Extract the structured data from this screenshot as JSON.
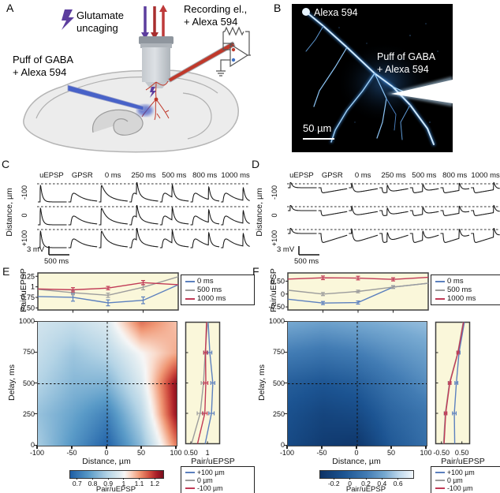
{
  "panel_labels": {
    "a": "A",
    "b": "B",
    "c": "C",
    "d": "D",
    "e": "E",
    "f": "F"
  },
  "colors": {
    "blue": "#5C80BE",
    "gray": "#9C9C9C",
    "red": "#C13A56",
    "plot_bg": "#FAF7DA",
    "trace": "#151515"
  },
  "panel_a": {
    "uncaging_line1": "Glutamate",
    "uncaging_line2": "uncaging",
    "recording_line1": "Recording el.,",
    "recording_line2": "+ Alexa 594",
    "puff_line1": "Puff of GABA",
    "puff_line2": "+ Alexa 594"
  },
  "panel_b": {
    "dye_label": "Alexa 594",
    "puff_line1": "Puff of GABA",
    "puff_line2": "+ Alexa 594",
    "scalebar": "50 µm"
  },
  "panel_c": {
    "columns": [
      "uEPSP",
      "GPSR",
      "0 ms",
      "250 ms",
      "500 ms",
      "800 ms",
      "1000 ms"
    ],
    "row_labels": [
      "-100",
      "0",
      "+100"
    ],
    "ylabel": "Distance, µm",
    "scale_v": "3 mV",
    "scale_h": "500 ms"
  },
  "panel_d": {
    "columns": [
      "uEPSP",
      "GPSR",
      "0 ms",
      "250 ms",
      "500 ms",
      "800 ms",
      "1000 ms"
    ],
    "row_labels": [
      "-100",
      "0",
      "+100"
    ],
    "ylabel": "Distance, µm",
    "scale_v": "3 mV",
    "scale_h": "500 ms"
  },
  "chart_data": {
    "e_top": {
      "type": "line",
      "ylabel": "Pair/uEPSP",
      "x": [
        -100,
        -50,
        0,
        50,
        100
      ],
      "xlim": [
        -100,
        100
      ],
      "ylim": [
        0.45,
        1.33
      ],
      "yticks": [
        {
          "v": 0.5,
          "label": "0.50"
        },
        {
          "v": 0.75,
          "label": "0.75"
        },
        {
          "v": 1,
          "label": "1"
        },
        {
          "v": 1.25,
          "label": "1.25"
        }
      ],
      "xticks": [
        -50,
        0,
        50
      ],
      "legend": [
        "0 ms",
        "500 ms",
        "1000 ms"
      ],
      "series": [
        {
          "name": "0 ms",
          "color": "blue",
          "values": [
            0.77,
            0.75,
            0.62,
            0.68,
            1.05
          ],
          "err": [
            0,
            0.09,
            0.07,
            0.08,
            0
          ]
        },
        {
          "name": "500 ms",
          "color": "gray",
          "values": [
            0.94,
            0.86,
            0.8,
            0.99,
            1.24
          ],
          "err": [
            0,
            0.05,
            0.05,
            0.06,
            0
          ]
        },
        {
          "name": "1000 ms",
          "color": "red",
          "values": [
            0.95,
            0.93,
            0.97,
            1.1,
            1.05
          ],
          "err": [
            0,
            0.05,
            0.04,
            0.05,
            0
          ]
        }
      ]
    },
    "e_heat": {
      "type": "heatmap",
      "xlabel": "Distance, µm",
      "ylabel": "Delay, ms",
      "x": [
        -100,
        -50,
        0,
        50,
        100
      ],
      "y": [
        0,
        250,
        500,
        750,
        1000
      ],
      "values": [
        [
          0.87,
          0.76,
          0.66,
          0.84,
          1.12
        ],
        [
          0.85,
          0.79,
          0.72,
          0.9,
          1.22
        ],
        [
          0.89,
          0.83,
          0.82,
          0.96,
          1.23
        ],
        [
          0.92,
          0.86,
          0.9,
          1.0,
          1.08
        ],
        [
          0.94,
          0.92,
          0.96,
          1.13,
          1.06
        ]
      ],
      "vmin": 0.65,
      "vmax": 1.25,
      "cmap": "rdbu",
      "crosshair": {
        "x": 0,
        "y": 500
      },
      "colorbar": {
        "ticks": [
          0.7,
          0.8,
          0.9,
          1,
          1.1,
          1.2
        ],
        "tick_labels": [
          "0.7",
          "0.8",
          "0.9",
          "1",
          "1.1",
          "1.2"
        ],
        "label": "Pair/uEPSP"
      }
    },
    "e_profile": {
      "type": "vline",
      "xlabel": "Pair/uEPSP",
      "ylim": [
        0,
        1000
      ],
      "xlim": [
        0.38,
        1.33
      ],
      "xticks": [
        {
          "v": 0.5,
          "label": "0.50"
        },
        {
          "v": 1,
          "label": "1"
        }
      ],
      "legend": [
        "+100 µm",
        "0 µm",
        "-100 µm"
      ],
      "y": [
        0,
        250,
        500,
        750,
        1000
      ],
      "series": [
        {
          "name": "+100 µm",
          "color": "blue",
          "values": [
            0.93,
            1.12,
            1.16,
            1.07,
            1.02
          ],
          "err": [
            0,
            0.08,
            0.06,
            0.06,
            0
          ]
        },
        {
          "name": "0 µm",
          "color": "gray",
          "values": [
            0.52,
            0.78,
            0.88,
            0.93,
            1.0
          ],
          "err": [
            0,
            0.09,
            0.07,
            0.05,
            0
          ]
        },
        {
          "name": "-100 µm",
          "color": "red",
          "values": [
            0.7,
            0.92,
            0.95,
            0.94,
            0.97
          ],
          "err": [
            0,
            0.07,
            0.06,
            0.05,
            0
          ]
        }
      ]
    },
    "f_top": {
      "type": "line",
      "ylabel": "Pair/uEPSP",
      "x": [
        -100,
        -50,
        0,
        50,
        100
      ],
      "xlim": [
        -100,
        100
      ],
      "ylim": [
        -0.62,
        0.82
      ],
      "yticks": [
        {
          "v": -0.5,
          "label": "-0.50"
        },
        {
          "v": 0,
          "label": "0"
        },
        {
          "v": 0.5,
          "label": "0.50"
        }
      ],
      "xticks": [
        -50,
        0,
        50
      ],
      "legend": [
        "0 ms",
        "500 ms",
        "1000 ms"
      ],
      "series": [
        {
          "name": "0 ms",
          "color": "blue",
          "values": [
            -0.2,
            -0.35,
            -0.33,
            0.27,
            0.42
          ],
          "err": [
            0,
            0.06,
            0.06,
            0.05,
            0
          ]
        },
        {
          "name": "500 ms",
          "color": "gray",
          "values": [
            0.15,
            0.0,
            0.1,
            0.27,
            0.42
          ],
          "err": [
            0,
            0.06,
            0.05,
            0.05,
            0
          ]
        },
        {
          "name": "1000 ms",
          "color": "red",
          "values": [
            0.58,
            0.63,
            0.62,
            0.57,
            0.65
          ],
          "err": [
            0,
            0.07,
            0.07,
            0.06,
            0
          ]
        }
      ]
    },
    "f_heat": {
      "type": "heatmap",
      "xlabel": "Distance, µm",
      "ylabel": "Delay, ms",
      "x": [
        -100,
        -50,
        0,
        50,
        100
      ],
      "y": [
        0,
        250,
        500,
        750,
        1000
      ],
      "values": [
        [
          -0.18,
          -0.3,
          -0.34,
          -0.05,
          0.1
        ],
        [
          -0.12,
          -0.22,
          -0.18,
          0.03,
          0.15
        ],
        [
          -0.02,
          -0.08,
          -0.02,
          0.15,
          0.28
        ],
        [
          0.2,
          0.15,
          0.2,
          0.3,
          0.38
        ],
        [
          0.42,
          0.38,
          0.42,
          0.46,
          0.5
        ]
      ],
      "vmin": -0.38,
      "vmax": 0.78,
      "cmap": "blues",
      "crosshair": {
        "x": 0,
        "y": 500
      },
      "colorbar": {
        "ticks": [
          -0.2,
          0,
          0.2,
          0.4,
          0.6
        ],
        "tick_labels": [
          "-0.2",
          "0",
          "0.2",
          "0.4",
          "0.6"
        ],
        "label": "Pair/uEPSP"
      }
    },
    "f_profile": {
      "type": "vline",
      "xlabel": "Pair/uEPSP",
      "ylim": [
        0,
        1000
      ],
      "xlim": [
        -0.72,
        0.82
      ],
      "xticks": [
        {
          "v": -0.5,
          "label": "-0.50"
        },
        {
          "v": 0.5,
          "label": "0.50"
        }
      ],
      "legend": [
        "+100 µm",
        "0 µm",
        "-100 µm"
      ],
      "y": [
        0,
        250,
        500,
        750,
        1000
      ],
      "series": [
        {
          "name": "+100 µm",
          "color": "blue",
          "values": [
            0.15,
            0.13,
            0.23,
            0.36,
            0.62
          ],
          "err": [
            0,
            0.09,
            0.07,
            0.05,
            0
          ]
        },
        {
          "name": "0 µm",
          "color": "gray",
          "values": [
            -0.4,
            -0.31,
            -0.11,
            0.3,
            0.56
          ],
          "err": [
            0,
            0.06,
            0.06,
            0.05,
            0
          ]
        },
        {
          "name": "-100 µm",
          "color": "red",
          "values": [
            -0.37,
            -0.29,
            -0.09,
            0.31,
            0.58
          ],
          "err": [
            0,
            0.06,
            0.06,
            0.05,
            0
          ]
        }
      ]
    }
  }
}
